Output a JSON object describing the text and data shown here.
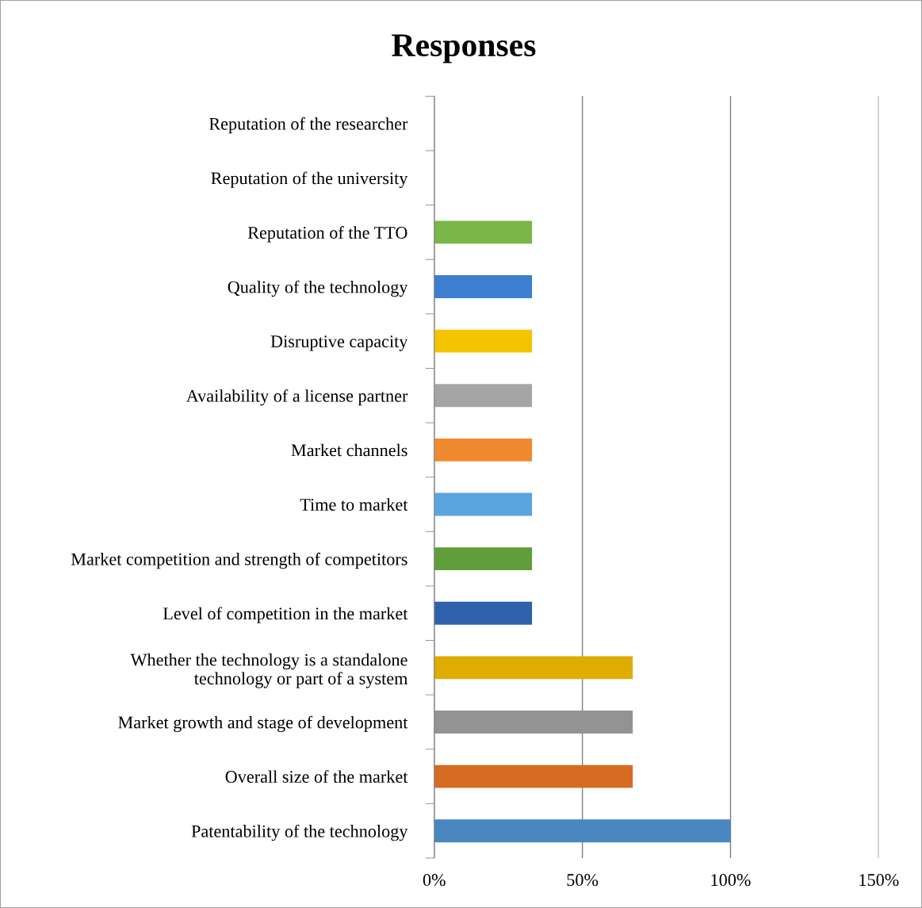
{
  "chart_data": {
    "type": "bar",
    "orientation": "horizontal",
    "title": "Responses",
    "categories": [
      "Reputation of the researcher",
      "Reputation of the university",
      "Reputation of the TTO",
      "Quality of the technology",
      "Disruptive capacity",
      "Availability of a license partner",
      "Market channels",
      "Time to market",
      "Market competition and strength of competitors",
      "Level of competition in the market",
      "Whether the technology is a standalone\ntechnology or part of a system",
      "Market growth and stage of development",
      "Overall size of the market",
      "Patentability of the technology"
    ],
    "values": [
      0,
      0,
      33,
      33,
      33,
      33,
      33,
      33,
      33,
      33,
      67,
      67,
      67,
      100
    ],
    "colors": [
      "#5b9bd5",
      "#ed7d31",
      "#7ab648",
      "#3d7fd0",
      "#f5c400",
      "#a5a5a5",
      "#f08a30",
      "#5aa5e0",
      "#5f9e3a",
      "#2f62ad",
      "#e0ac00",
      "#939393",
      "#d66b22",
      "#4a87c0"
    ],
    "xlim": [
      0,
      150
    ],
    "xticks": [
      {
        "value": 0,
        "label": "0%"
      },
      {
        "value": 50,
        "label": "50%"
      },
      {
        "value": 100,
        "label": "100%"
      },
      {
        "value": 150,
        "label": "150%"
      }
    ],
    "grid": "x",
    "legend": false
  }
}
